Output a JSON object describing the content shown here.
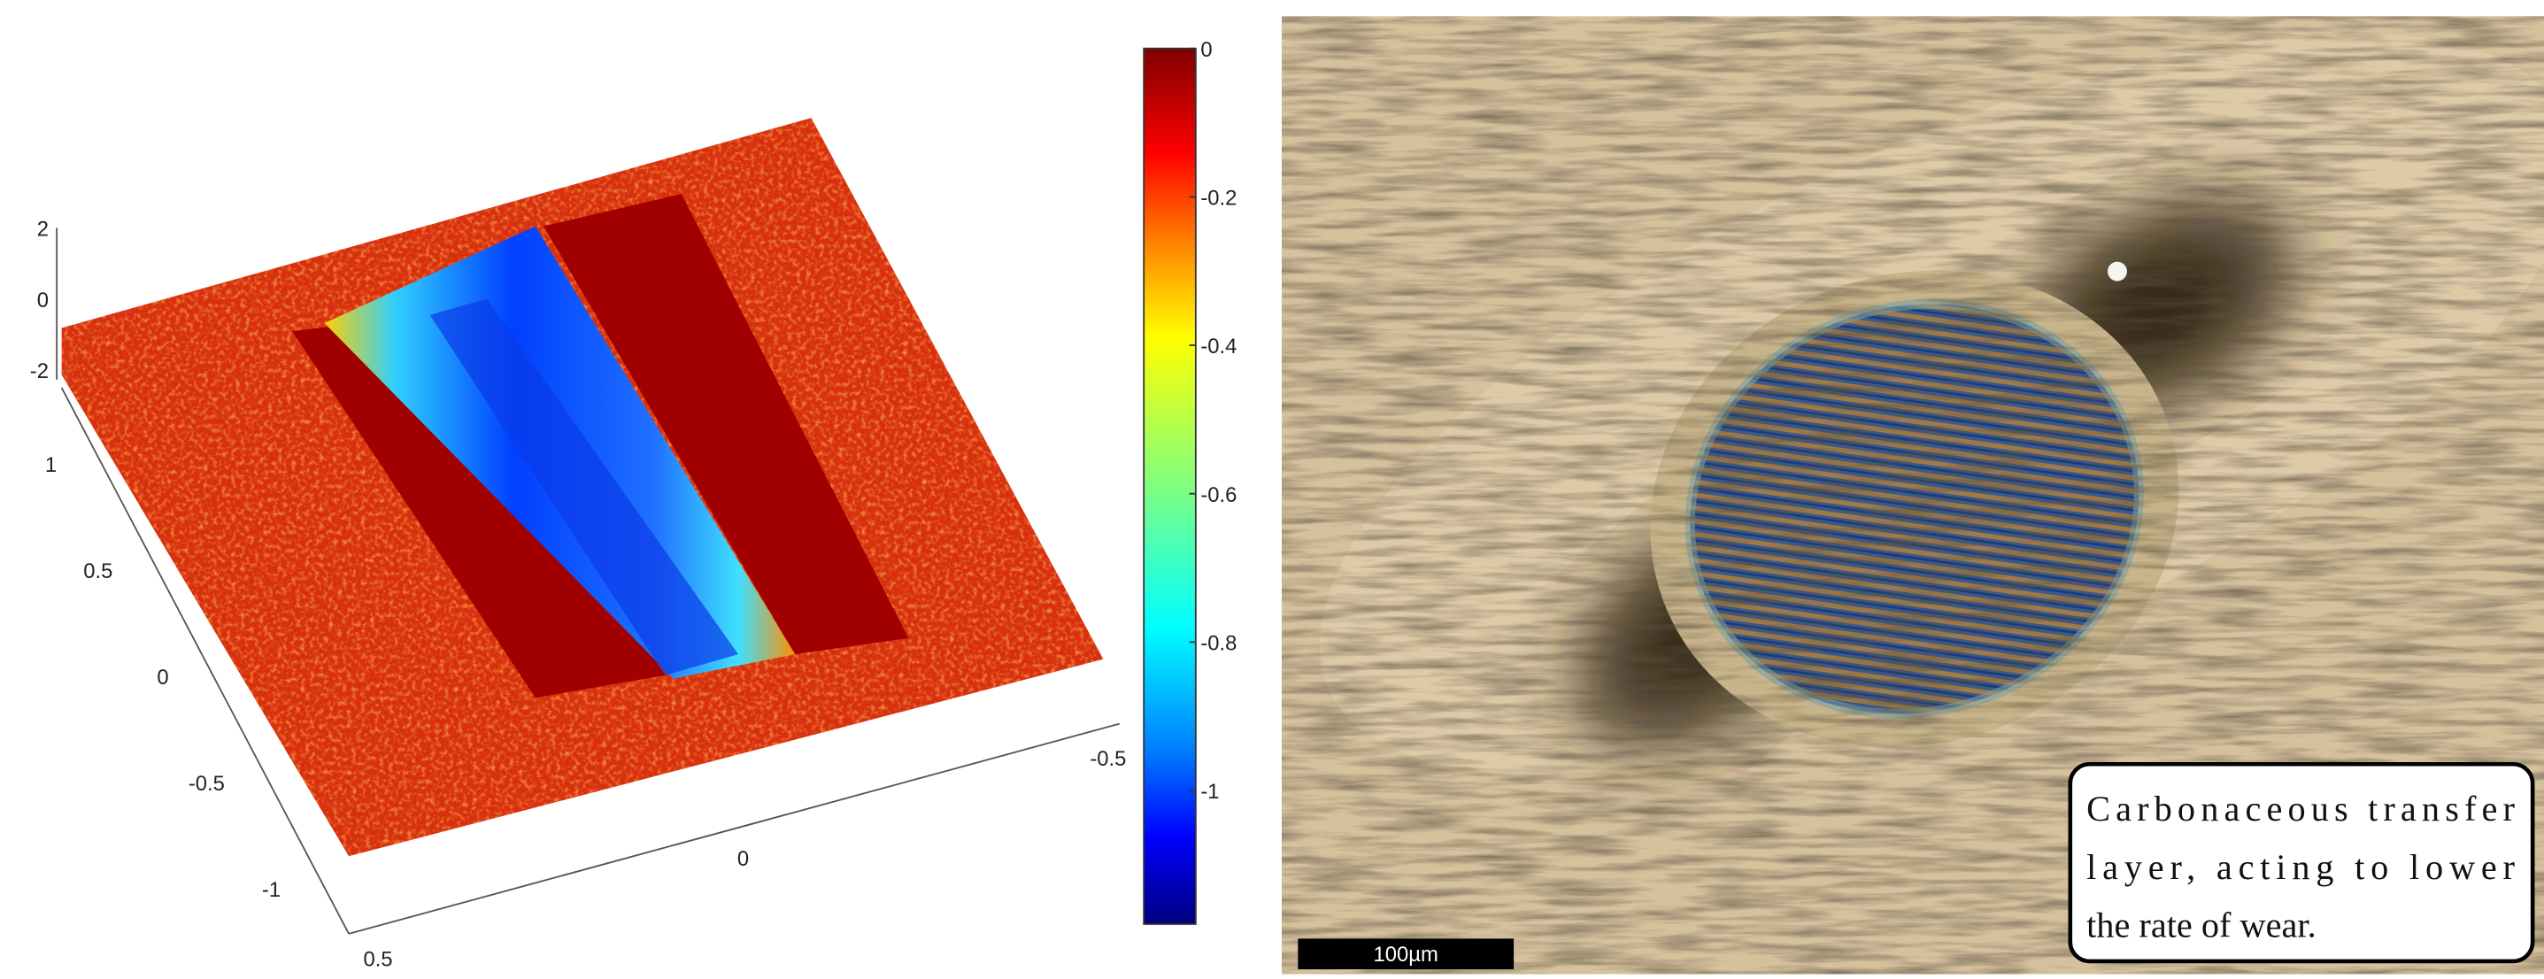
{
  "surface_plot": {
    "z_ticks": [
      2,
      0,
      -2
    ],
    "y_ticks": [
      1,
      0.5,
      0,
      -0.5,
      -1
    ],
    "x_ticks": [
      0.5,
      0,
      -0.5
    ],
    "colorbar": {
      "clim": [
        -1.18,
        0
      ],
      "ticks": [
        0,
        -0.2,
        -0.4,
        -0.6,
        -0.8,
        -1
      ]
    }
  },
  "micrograph": {
    "scale_bar": "100µm",
    "annotation": [
      "Carbonaceous transfer",
      "layer, acting to lower",
      "the rate of wear."
    ]
  }
}
